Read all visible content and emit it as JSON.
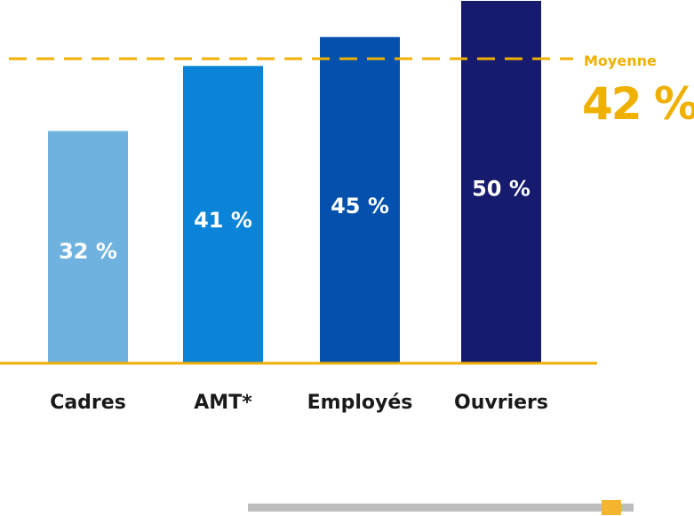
{
  "chart_data": {
    "type": "bar",
    "categories": [
      "Cadres",
      "AMT*",
      "Employés",
      "Ouvriers"
    ],
    "values": [
      32,
      41,
      45,
      50
    ],
    "value_labels": [
      "32 %",
      "41 %",
      "45 %",
      "50 %"
    ],
    "bar_colors": [
      "#6fb2e0",
      "#0a84d8",
      "#0450ad",
      "#161b6e"
    ],
    "ylim": [
      0,
      50
    ],
    "average": {
      "label": "Moyenne",
      "value": 42,
      "value_label": "42 %",
      "color": "#f0b000"
    },
    "axis_color": "#f0b000",
    "grid": false
  }
}
